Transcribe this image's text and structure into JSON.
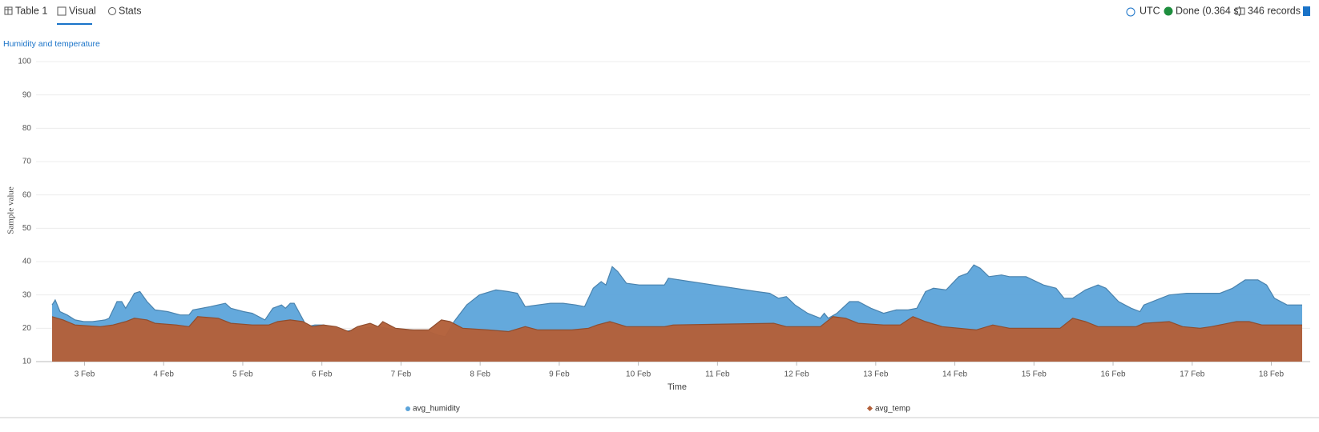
{
  "toolbar": {
    "tabs": [
      "Table 1",
      "Visual",
      "Stats"
    ]
  },
  "status": {
    "timezone": "UTC",
    "state": "Done (0.364 s)",
    "records": "346 records"
  },
  "chart_data": {
    "type": "area",
    "title": "Humidity and temperature",
    "x_label": "Time",
    "y_label": "Sample value",
    "xlim": [
      2.59,
      18.39
    ],
    "ylim": [
      10,
      100
    ],
    "xticks": [
      {
        "value": 3,
        "label": "3 Feb"
      },
      {
        "value": 4,
        "label": "4 Feb"
      },
      {
        "value": 5,
        "label": "5 Feb"
      },
      {
        "value": 6,
        "label": "6 Feb"
      },
      {
        "value": 7,
        "label": "7 Feb"
      },
      {
        "value": 8,
        "label": "8 Feb"
      },
      {
        "value": 9,
        "label": "9 Feb"
      },
      {
        "value": 10,
        "label": "10 Feb"
      },
      {
        "value": 11,
        "label": "11 Feb"
      },
      {
        "value": 12,
        "label": "12 Feb"
      },
      {
        "value": 13,
        "label": "13 Feb"
      },
      {
        "value": 14,
        "label": "14 Feb"
      },
      {
        "value": 15,
        "label": "15 Feb"
      },
      {
        "value": 16,
        "label": "16 Feb"
      },
      {
        "value": 17,
        "label": "17 Feb"
      },
      {
        "value": 18,
        "label": "18 Feb"
      }
    ],
    "yticks": [
      10,
      20,
      30,
      40,
      50,
      60,
      70,
      80,
      90,
      100
    ],
    "grid": true,
    "legend": "bottom",
    "series": [
      {
        "name": "avg_humidity",
        "color": "#5ca4da",
        "x": [
          2.59,
          2.63,
          2.69,
          2.78,
          2.88,
          2.99,
          3.1,
          3.26,
          3.31,
          3.41,
          3.47,
          3.52,
          3.57,
          3.63,
          3.7,
          3.79,
          3.89,
          4.05,
          4.21,
          4.32,
          4.37,
          4.59,
          4.78,
          4.85,
          5.01,
          5.12,
          5.28,
          5.38,
          5.49,
          5.54,
          5.6,
          5.65,
          5.73,
          5.81,
          5.91,
          6.02,
          6.13,
          6.29,
          6.5,
          6.71,
          6.93,
          7.14,
          7.35,
          7.46,
          7.56,
          7.67,
          7.83,
          7.99,
          8.2,
          8.36,
          8.47,
          8.57,
          8.73,
          8.89,
          9.05,
          9.21,
          9.32,
          9.43,
          9.53,
          9.59,
          9.67,
          9.74,
          9.85,
          10.01,
          10.22,
          10.33,
          10.38,
          11.5,
          11.66,
          11.77,
          11.87,
          11.98,
          12.14,
          12.3,
          12.35,
          12.4,
          12.51,
          12.67,
          12.78,
          12.94,
          13.1,
          13.26,
          13.41,
          13.52,
          13.63,
          13.73,
          13.89,
          14.05,
          14.16,
          14.24,
          14.32,
          14.43,
          14.59,
          14.69,
          14.9,
          15.12,
          15.28,
          15.38,
          15.49,
          15.65,
          15.81,
          15.91,
          16.07,
          16.23,
          16.34,
          16.39,
          16.55,
          16.71,
          16.93,
          17.14,
          17.35,
          17.51,
          17.67,
          17.83,
          17.94,
          18.04,
          18.2,
          18.39
        ],
        "values": [
          27,
          28.5,
          25,
          24,
          22.5,
          22,
          22,
          22.5,
          23,
          28,
          28,
          26,
          28,
          30.5,
          31,
          28,
          25.5,
          25,
          24,
          24,
          25.5,
          26.5,
          27.5,
          26,
          25,
          24.5,
          22.5,
          26,
          27,
          26,
          27.5,
          27.5,
          24,
          20.5,
          21,
          21,
          20.5,
          19,
          20,
          20.5,
          19.5,
          19.5,
          19,
          18,
          17.5,
          22,
          27,
          30,
          31.5,
          31,
          30.5,
          26.5,
          27,
          27.5,
          27.5,
          27,
          26.5,
          32,
          34,
          33,
          38.5,
          37,
          33.5,
          33,
          33,
          33,
          35,
          31,
          30.5,
          29,
          29.5,
          27,
          24.5,
          23,
          24.5,
          23,
          24.5,
          28,
          28,
          26,
          24.5,
          25.5,
          25.5,
          26,
          31,
          32,
          31.5,
          35.5,
          36.5,
          39,
          38,
          35.5,
          36,
          35.5,
          35.5,
          33,
          32,
          29,
          29,
          31.5,
          33,
          32,
          28,
          26,
          25,
          27,
          28.5,
          30,
          30.5,
          30.5,
          30.5,
          32,
          34.5,
          34.5,
          33,
          29,
          27,
          27
        ]
      },
      {
        "name": "avg_temp",
        "color": "#b3603a",
        "x": [
          2.59,
          2.73,
          2.88,
          3.2,
          3.36,
          3.52,
          3.63,
          3.79,
          3.89,
          4.16,
          4.32,
          4.43,
          4.69,
          4.85,
          5.12,
          5.33,
          5.44,
          5.6,
          5.76,
          5.88,
          6.02,
          6.18,
          6.34,
          6.45,
          6.61,
          6.71,
          6.77,
          6.93,
          7.14,
          7.35,
          7.51,
          7.62,
          7.78,
          8.1,
          8.36,
          8.57,
          8.73,
          9.16,
          9.37,
          9.48,
          9.64,
          9.85,
          10.33,
          10.44,
          11.71,
          11.87,
          12.3,
          12.46,
          12.62,
          12.78,
          13.1,
          13.31,
          13.47,
          13.63,
          13.84,
          14.27,
          14.48,
          14.69,
          15.33,
          15.49,
          15.65,
          15.81,
          16.29,
          16.39,
          16.71,
          16.88,
          17.1,
          17.24,
          17.56,
          17.72,
          17.88,
          18.39
        ],
        "values": [
          23.5,
          22.5,
          21,
          20.5,
          21,
          22,
          23,
          22.5,
          21.5,
          21,
          20.5,
          23.5,
          23,
          21.5,
          21,
          21,
          22,
          22.5,
          22,
          20.5,
          21,
          20.5,
          19,
          20.5,
          21.5,
          20.5,
          22,
          20,
          19.5,
          19.5,
          22.5,
          22,
          20,
          19.5,
          19,
          20.5,
          19.5,
          19.5,
          20,
          21,
          22,
          20.5,
          20.5,
          21,
          21.5,
          20.5,
          20.5,
          23.5,
          23,
          21.5,
          21,
          21,
          23.5,
          22,
          20.5,
          19.5,
          21,
          20,
          20,
          23,
          22,
          20.5,
          20.5,
          21.5,
          22,
          20.5,
          20,
          20.5,
          22,
          22,
          21,
          21
        ]
      }
    ]
  }
}
